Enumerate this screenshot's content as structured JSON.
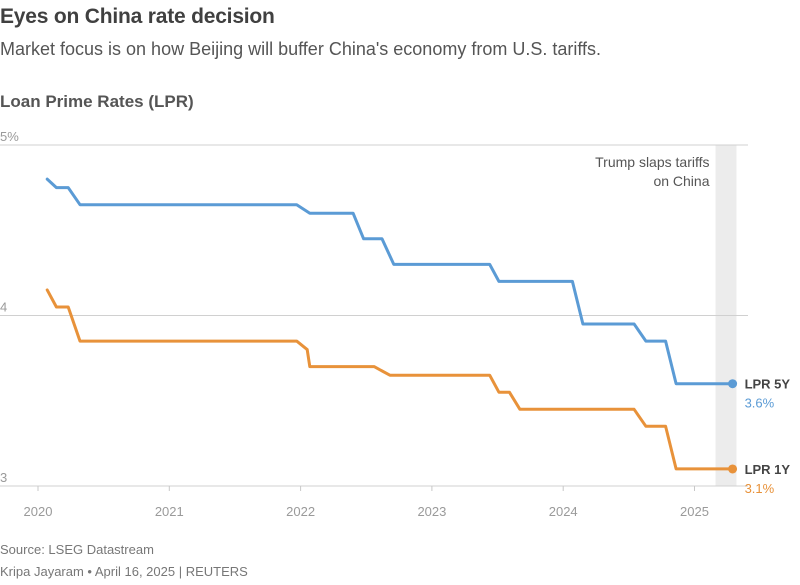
{
  "header": {
    "title": "Eyes on China rate decision",
    "subtitle": "Market focus is on how Beijing will buffer China's economy from U.S. tariffs."
  },
  "footer": {
    "source": "Source: LSEG Datastream",
    "byline": "Kripa Jayaram • April 16, 2025 | REUTERS"
  },
  "chart_data": {
    "type": "line",
    "title": "Loan Prime Rates (LPR)",
    "xlabel": "",
    "ylabel": "",
    "ylim": [
      3,
      5
    ],
    "xlim": [
      2019.98,
      2025.33
    ],
    "grid": true,
    "y_ticks": [
      {
        "value": 5,
        "label": "5%"
      },
      {
        "value": 4,
        "label": "4"
      },
      {
        "value": 3,
        "label": "3"
      }
    ],
    "x_ticks": [
      {
        "value": 2020,
        "label": "2020"
      },
      {
        "value": 2021,
        "label": "2021"
      },
      {
        "value": 2022,
        "label": "2022"
      },
      {
        "value": 2023,
        "label": "2023"
      },
      {
        "value": 2024,
        "label": "2024"
      },
      {
        "value": 2025,
        "label": "2025"
      }
    ],
    "annotation": {
      "lines": [
        "Trump slaps tariffs",
        "on China"
      ],
      "band_start": 2025.16,
      "band_end": 2025.32
    },
    "series": [
      {
        "name": "LPR 5Y",
        "end_label": "LPR 5Y",
        "end_value": "3.6%",
        "color": "#5b9bd5",
        "points": [
          [
            2020.07,
            4.8
          ],
          [
            2020.14,
            4.75
          ],
          [
            2020.23,
            4.75
          ],
          [
            2020.32,
            4.65
          ],
          [
            2021.97,
            4.65
          ],
          [
            2022.07,
            4.6
          ],
          [
            2022.4,
            4.6
          ],
          [
            2022.48,
            4.45
          ],
          [
            2022.62,
            4.45
          ],
          [
            2022.71,
            4.3
          ],
          [
            2023.44,
            4.3
          ],
          [
            2023.51,
            4.2
          ],
          [
            2024.07,
            4.2
          ],
          [
            2024.15,
            3.95
          ],
          [
            2024.54,
            3.95
          ],
          [
            2024.63,
            3.85
          ],
          [
            2024.78,
            3.85
          ],
          [
            2024.86,
            3.6
          ],
          [
            2025.29,
            3.6
          ]
        ]
      },
      {
        "name": "LPR 1Y",
        "end_label": "LPR 1Y",
        "end_value": "3.1%",
        "color": "#e8923a",
        "points": [
          [
            2020.07,
            4.15
          ],
          [
            2020.14,
            4.05
          ],
          [
            2020.23,
            4.05
          ],
          [
            2020.32,
            3.85
          ],
          [
            2021.97,
            3.85
          ],
          [
            2022.05,
            3.8
          ],
          [
            2022.07,
            3.7
          ],
          [
            2022.56,
            3.7
          ],
          [
            2022.68,
            3.65
          ],
          [
            2023.44,
            3.65
          ],
          [
            2023.51,
            3.55
          ],
          [
            2023.59,
            3.55
          ],
          [
            2023.67,
            3.45
          ],
          [
            2024.54,
            3.45
          ],
          [
            2024.63,
            3.35
          ],
          [
            2024.78,
            3.35
          ],
          [
            2024.86,
            3.1
          ],
          [
            2025.29,
            3.1
          ]
        ]
      }
    ]
  }
}
